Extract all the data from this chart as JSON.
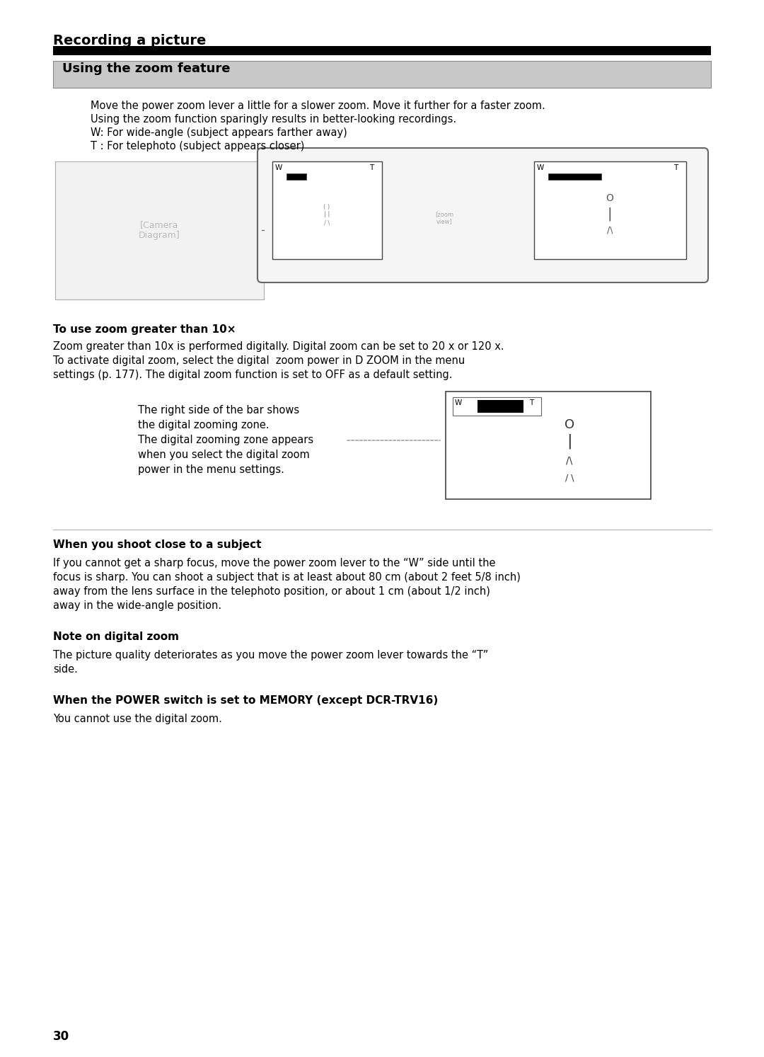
{
  "page_bg": "#ffffff",
  "section_title": "Recording a picture",
  "subsection_title": "Using the zoom feature",
  "para1_lines": [
    "Move the power zoom lever a little for a slower zoom. Move it further for a faster zoom.",
    "Using the zoom function sparingly results in better-looking recordings.",
    "W: For wide-angle (subject appears farther away)",
    "T : For telephoto (subject appears closer)"
  ],
  "zoom10_heading": "To use zoom greater than 10×",
  "zoom10_body": [
    "Zoom greater than 10x is performed digitally. Digital zoom can be set to 20 x or 120 x.",
    "To activate digital zoom, select the digital  zoom power in D ZOOM in the menu",
    "settings (p. 177). The digital zoom function is set to OFF as a default setting."
  ],
  "digital_zoom_text": [
    "The right side of the bar shows",
    "the digital zooming zone.",
    "The digital zooming zone appears",
    "when you select the digital zoom",
    "power in the menu settings."
  ],
  "shoot_close_heading": "When you shoot close to a subject",
  "shoot_close_body": [
    "If you cannot get a sharp focus, move the power zoom lever to the “W” side until the",
    "focus is sharp. You can shoot a subject that is at least about 80 cm (about 2 feet 5/8 inch)",
    "away from the lens surface in the telephoto position, or about 1 cm (about 1/2 inch)",
    "away in the wide-angle position."
  ],
  "note_digital_heading": "Note on digital zoom",
  "note_digital_body": [
    "The picture quality deteriorates as you move the power zoom lever towards the “T”",
    "side."
  ],
  "power_switch_heading": "When the POWER switch is set to MEMORY (except DCR-TRV16)",
  "power_switch_body": "You cannot use the digital zoom.",
  "page_number": "30"
}
